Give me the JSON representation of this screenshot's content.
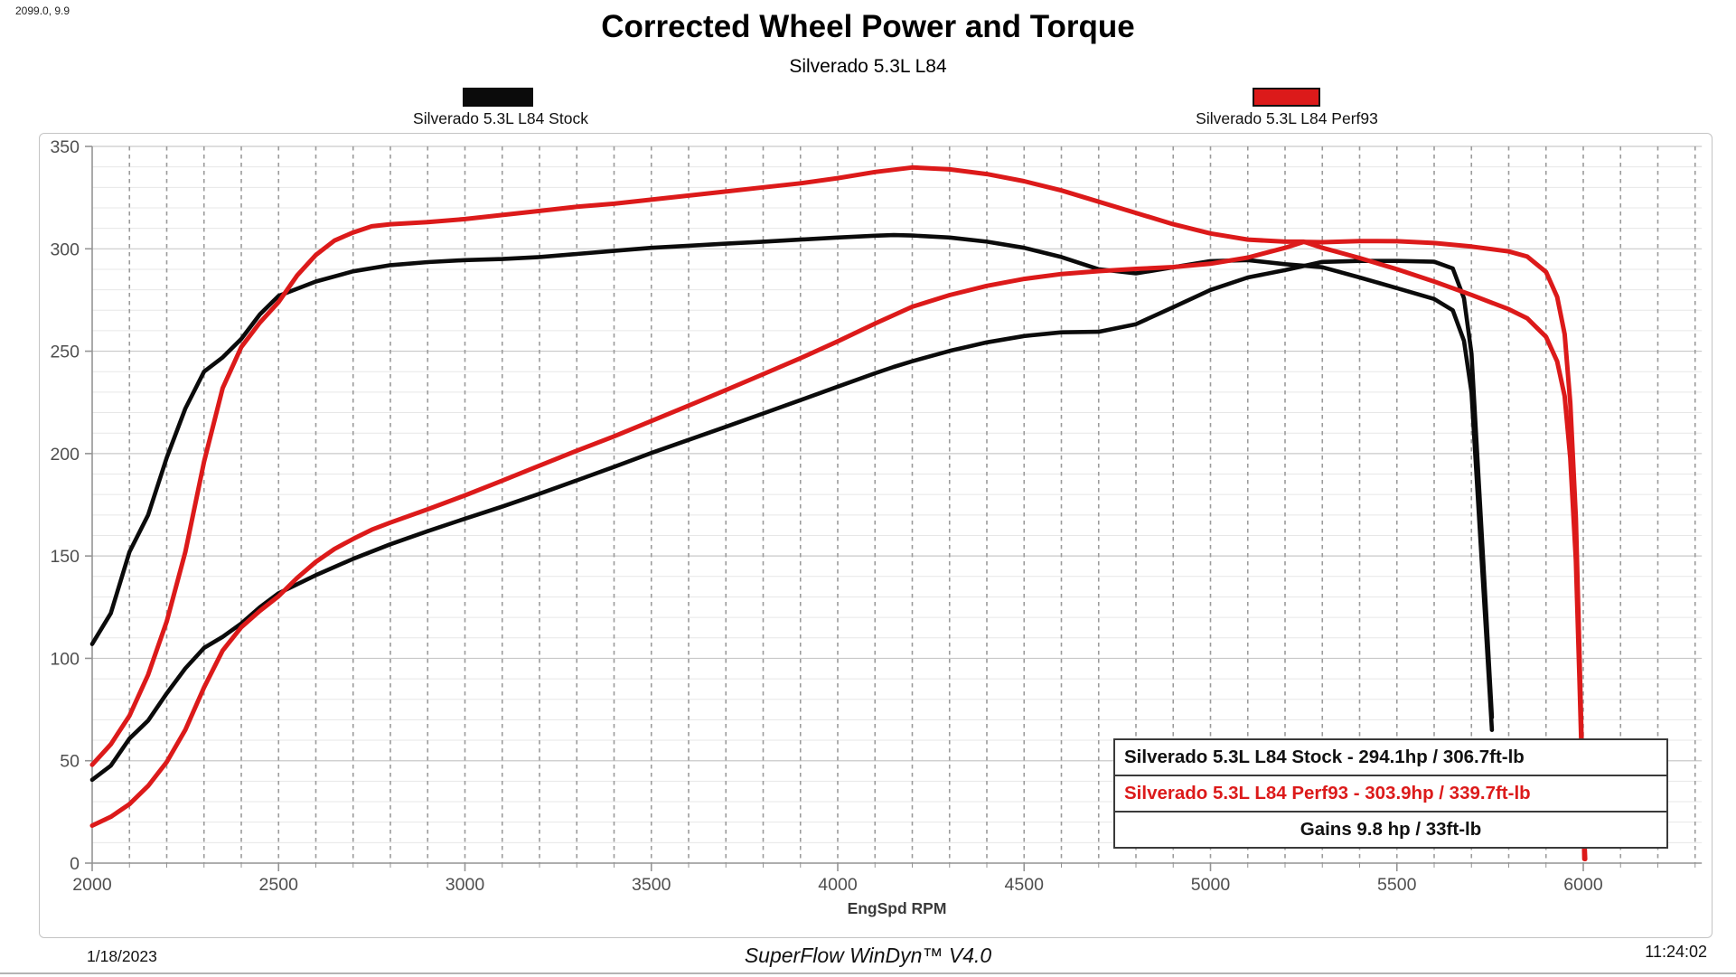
{
  "corner_note": "2099.0, 9.9",
  "header": {
    "title": "Corrected Wheel Power and Torque",
    "subtitle": "Silverado 5.3L L84"
  },
  "legend": [
    {
      "label": "Silverado 5.3L L84 Stock",
      "color": "#0b0b0b"
    },
    {
      "label": "Silverado 5.3L L84 Perf93",
      "color": "#dc1a1a"
    }
  ],
  "results_box": {
    "rows": [
      {
        "text": "Silverado 5.3L L84 Stock - 294.1hp / 306.7ft-lb",
        "color": "#111111"
      },
      {
        "text": "Silverado 5.3L L84 Perf93 - 303.9hp / 339.7ft-lb",
        "color": "#dc1a1a"
      },
      {
        "text": "Gains 9.8 hp / 33ft-lb",
        "color": "#111111"
      }
    ]
  },
  "footer": {
    "date": "1/18/2023",
    "app": "SuperFlow WinDyn™ V4.0",
    "time": "11:24:02"
  },
  "chart_data": {
    "type": "line",
    "title": "Corrected Wheel Power and Torque",
    "subtitle": "Silverado 5.3L L84",
    "xlabel": "EngSpd RPM",
    "ylabel": "",
    "xlim": [
      2000,
      6318
    ],
    "ylim": [
      0,
      350
    ],
    "x_ticks": [
      2000,
      2500,
      3000,
      3500,
      4000,
      4500,
      5000,
      5500,
      6000
    ],
    "y_ticks": [
      0,
      50,
      100,
      150,
      200,
      250,
      300,
      350
    ],
    "x_minor_step": 100,
    "y_minor_step": 10,
    "grid": {
      "vertical_dashed": true,
      "horizontal_minor": true,
      "horizontal_major": true
    },
    "legend_position": "top",
    "colors": {
      "stock": "#0b0b0b",
      "perf93": "#dc1a1a"
    },
    "peaks": {
      "stock_hp": 294.1,
      "stock_tq": 306.7,
      "perf93_hp": 303.9,
      "perf93_tq": 339.7,
      "gain_hp": 9.8,
      "gain_tq": 33
    },
    "series": [
      {
        "name": "Stock torque (ft-lb)",
        "run": "Silverado 5.3L L84 Stock",
        "measure": "torque",
        "color": "#0b0b0b",
        "width": 4.6,
        "points": [
          [
            2000,
            107
          ],
          [
            2050,
            122
          ],
          [
            2100,
            152
          ],
          [
            2150,
            170
          ],
          [
            2200,
            198
          ],
          [
            2250,
            222
          ],
          [
            2300,
            240
          ],
          [
            2350,
            247
          ],
          [
            2400,
            256
          ],
          [
            2450,
            268
          ],
          [
            2500,
            277
          ],
          [
            2600,
            284
          ],
          [
            2700,
            289
          ],
          [
            2800,
            292
          ],
          [
            2900,
            293.5
          ],
          [
            3000,
            294.5
          ],
          [
            3100,
            295
          ],
          [
            3200,
            296
          ],
          [
            3300,
            297.5
          ],
          [
            3400,
            299
          ],
          [
            3500,
            300.5
          ],
          [
            3600,
            301.5
          ],
          [
            3700,
            302.5
          ],
          [
            3800,
            303.5
          ],
          [
            3900,
            304.5
          ],
          [
            4000,
            305.5
          ],
          [
            4100,
            306.4
          ],
          [
            4150,
            306.7
          ],
          [
            4200,
            306.5
          ],
          [
            4300,
            305.5
          ],
          [
            4400,
            303.5
          ],
          [
            4500,
            300.5
          ],
          [
            4600,
            296
          ],
          [
            4700,
            290
          ],
          [
            4800,
            288
          ],
          [
            4900,
            291
          ],
          [
            5000,
            294
          ],
          [
            5100,
            294.5
          ],
          [
            5200,
            292.5
          ],
          [
            5300,
            291
          ],
          [
            5400,
            286
          ],
          [
            5500,
            280.8
          ],
          [
            5600,
            275.5
          ],
          [
            5650,
            270
          ],
          [
            5680,
            255
          ],
          [
            5700,
            230
          ],
          [
            5720,
            170
          ],
          [
            5740,
            110
          ],
          [
            5755,
            65
          ]
        ]
      },
      {
        "name": "Stock power (hp)",
        "run": "Silverado 5.3L L84 Stock",
        "measure": "power",
        "color": "#0b0b0b",
        "width": 4.6,
        "points": [
          [
            2000,
            40.7
          ],
          [
            2050,
            47.6
          ],
          [
            2100,
            60.8
          ],
          [
            2150,
            69.6
          ],
          [
            2200,
            82.9
          ],
          [
            2250,
            95.1
          ],
          [
            2300,
            105.1
          ],
          [
            2350,
            110.5
          ],
          [
            2400,
            117
          ],
          [
            2450,
            125
          ],
          [
            2500,
            131.8
          ],
          [
            2600,
            140.6
          ],
          [
            2700,
            148.6
          ],
          [
            2800,
            155.7
          ],
          [
            2900,
            162.1
          ],
          [
            3000,
            168.2
          ],
          [
            3100,
            174.1
          ],
          [
            3200,
            180.4
          ],
          [
            3300,
            186.9
          ],
          [
            3400,
            193.5
          ],
          [
            3500,
            200.3
          ],
          [
            3600,
            206.7
          ],
          [
            3700,
            213.1
          ],
          [
            3800,
            219.6
          ],
          [
            3900,
            226.1
          ],
          [
            4000,
            232.7
          ],
          [
            4100,
            239.2
          ],
          [
            4150,
            242.3
          ],
          [
            4200,
            245.1
          ],
          [
            4300,
            250.1
          ],
          [
            4400,
            254.3
          ],
          [
            4500,
            257.4
          ],
          [
            4600,
            259.2
          ],
          [
            4700,
            259.5
          ],
          [
            4800,
            263.2
          ],
          [
            4900,
            271.5
          ],
          [
            5000,
            279.9
          ],
          [
            5100,
            286
          ],
          [
            5200,
            289.6
          ],
          [
            5300,
            293.6
          ],
          [
            5400,
            294.1
          ],
          [
            5500,
            294.1
          ],
          [
            5600,
            293.7
          ],
          [
            5650,
            290.4
          ],
          [
            5680,
            275.8
          ],
          [
            5700,
            248.8
          ],
          [
            5720,
            185.1
          ],
          [
            5740,
            120.2
          ],
          [
            5755,
            71.2
          ]
        ]
      },
      {
        "name": "Perf93 power (hp)",
        "run": "Silverado 5.3L L84 Perf93",
        "measure": "power",
        "color": "#dc1a1a",
        "width": 5,
        "points": [
          [
            2000,
            18.3
          ],
          [
            2050,
            22.6
          ],
          [
            2100,
            28.8
          ],
          [
            2150,
            37.7
          ],
          [
            2200,
            49.4
          ],
          [
            2250,
            65.1
          ],
          [
            2300,
            85.8
          ],
          [
            2350,
            103.8
          ],
          [
            2400,
            115.2
          ],
          [
            2450,
            123.2
          ],
          [
            2500,
            130.4
          ],
          [
            2550,
            139.3
          ],
          [
            2600,
            147.1
          ],
          [
            2650,
            153.4
          ],
          [
            2700,
            158.3
          ],
          [
            2750,
            162.8
          ],
          [
            2800,
            166.3
          ],
          [
            2900,
            172.8
          ],
          [
            3000,
            179.6
          ],
          [
            3100,
            186.8
          ],
          [
            3200,
            194.1
          ],
          [
            3300,
            201.4
          ],
          [
            3400,
            208.4
          ],
          [
            3500,
            215.9
          ],
          [
            3600,
            223.4
          ],
          [
            3700,
            231
          ],
          [
            3800,
            238.8
          ],
          [
            3900,
            246.6
          ],
          [
            4000,
            254.8
          ],
          [
            4100,
            263.5
          ],
          [
            4200,
            271.7
          ],
          [
            4300,
            277.4
          ],
          [
            4400,
            281.9
          ],
          [
            4500,
            285.3
          ],
          [
            4600,
            287.7
          ],
          [
            4700,
            289.1
          ],
          [
            4800,
            290.2
          ],
          [
            4900,
            291.1
          ],
          [
            5000,
            292.7
          ],
          [
            5100,
            295.7
          ],
          [
            5200,
            300.5
          ],
          [
            5250,
            303.4
          ],
          [
            5300,
            303.2
          ],
          [
            5400,
            303.8
          ],
          [
            5500,
            303.7
          ],
          [
            5600,
            302.8
          ],
          [
            5700,
            301.1
          ],
          [
            5800,
            298.7
          ],
          [
            5850,
            296.2
          ],
          [
            5900,
            288.7
          ],
          [
            5930,
            276.5
          ],
          [
            5950,
            258.3
          ],
          [
            5965,
            224.9
          ],
          [
            5980,
            168.4
          ],
          [
            5990,
            100.3
          ],
          [
            6000,
            27
          ],
          [
            6003,
            2
          ]
        ]
      },
      {
        "name": "Perf93 torque (ft-lb)",
        "run": "Silverado 5.3L L84 Perf93",
        "measure": "torque",
        "color": "#dc1a1a",
        "width": 5,
        "points": [
          [
            2000,
            48
          ],
          [
            2050,
            58
          ],
          [
            2100,
            72
          ],
          [
            2150,
            92
          ],
          [
            2200,
            118
          ],
          [
            2250,
            152
          ],
          [
            2300,
            196
          ],
          [
            2350,
            232
          ],
          [
            2400,
            252
          ],
          [
            2450,
            264
          ],
          [
            2500,
            274
          ],
          [
            2550,
            287
          ],
          [
            2600,
            297
          ],
          [
            2650,
            304
          ],
          [
            2700,
            308
          ],
          [
            2750,
            311
          ],
          [
            2800,
            312
          ],
          [
            2900,
            313
          ],
          [
            3000,
            314.5
          ],
          [
            3100,
            316.5
          ],
          [
            3200,
            318.5
          ],
          [
            3300,
            320.5
          ],
          [
            3400,
            322
          ],
          [
            3500,
            324
          ],
          [
            3600,
            326
          ],
          [
            3700,
            328
          ],
          [
            3800,
            330
          ],
          [
            3900,
            332
          ],
          [
            4000,
            334.5
          ],
          [
            4100,
            337.5
          ],
          [
            4200,
            339.7
          ],
          [
            4300,
            338.8
          ],
          [
            4400,
            336.5
          ],
          [
            4500,
            333
          ],
          [
            4600,
            328.5
          ],
          [
            4700,
            323
          ],
          [
            4800,
            317.5
          ],
          [
            4900,
            312
          ],
          [
            5000,
            307.5
          ],
          [
            5100,
            304.5
          ],
          [
            5200,
            303.5
          ],
          [
            5250,
            303.5
          ],
          [
            5300,
            300.5
          ],
          [
            5400,
            295.5
          ],
          [
            5500,
            290
          ],
          [
            5600,
            284
          ],
          [
            5700,
            277.5
          ],
          [
            5800,
            270.5
          ],
          [
            5850,
            266
          ],
          [
            5900,
            257
          ],
          [
            5930,
            245
          ],
          [
            5950,
            228
          ],
          [
            5965,
            198
          ],
          [
            5980,
            148
          ],
          [
            5990,
            88
          ],
          [
            6000,
            24
          ],
          [
            6005,
            2
          ]
        ]
      }
    ]
  }
}
